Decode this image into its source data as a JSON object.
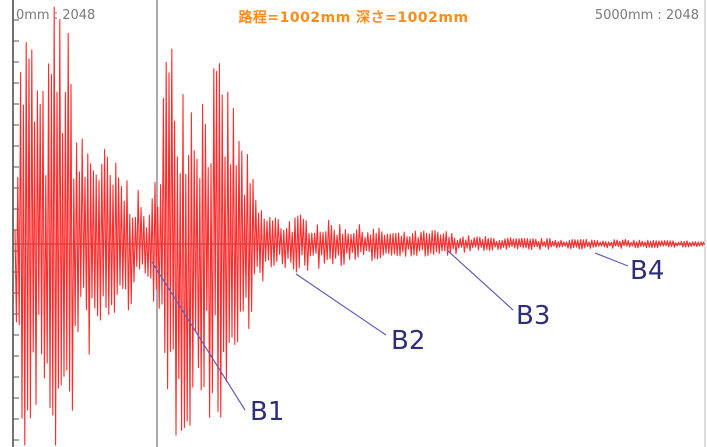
{
  "header": {
    "left_range": "0mm : 2048",
    "right_range": "5000mm : 2048",
    "readout": "路程=1002mm 深さ=1002mm"
  },
  "annotations": [
    "B1",
    "B2",
    "B3",
    "B4"
  ],
  "colors": {
    "waveform": "#ff2a2a",
    "readout": "#ff8c1a",
    "annotation_text": "#2e2e78",
    "leader_line": "#5f5fb5",
    "axis": "#333333",
    "background": "#ffffff"
  }
}
